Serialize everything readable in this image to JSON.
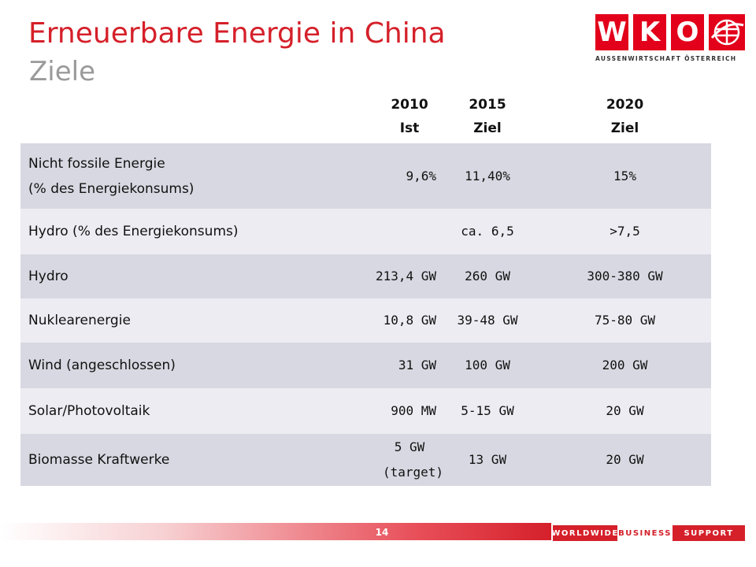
{
  "header": {
    "title": "Erneuerbare Energie in China",
    "subtitle": "Ziele"
  },
  "logo": {
    "letters": [
      "W",
      "K",
      "O"
    ],
    "tagline": "AUSSENWIRTSCHAFT ÖSTERREICH",
    "brand_color": "#e2001a",
    "icon": "globe-icon"
  },
  "table": {
    "columns": [
      {
        "year": "2010",
        "label": "Ist"
      },
      {
        "year": "2015",
        "label": "Ziel"
      },
      {
        "year": "2020",
        "label": "Ziel"
      }
    ],
    "rows": [
      {
        "label_line1": "Nicht fossile Energie",
        "label_line2": "(% des  Energiekonsums)",
        "v2010": "9,6%",
        "v2015": "11,40%",
        "v2020": "15%"
      },
      {
        "label": "Hydro (% des Energiekonsums)",
        "v2010": "",
        "v2015": "ca. 6,5",
        "v2020": ">7,5"
      },
      {
        "label": "Hydro",
        "v2010": "213,4 GW",
        "v2015": "260 GW",
        "v2020": "300-380 GW"
      },
      {
        "label": "Nuklearenergie",
        "v2010": "10,8 GW",
        "v2015": "39-48 GW",
        "v2020": "75-80 GW"
      },
      {
        "label": "Wind (angeschlossen)",
        "v2010": "31 GW",
        "v2015": "100 GW",
        "v2020": "200 GW"
      },
      {
        "label": "Solar/Photovoltaik",
        "v2010": "900 MW",
        "v2015": "5-15 GW",
        "v2020": "20 GW"
      },
      {
        "label": "Biomasse Kraftwerke",
        "v2010_line1": "5 GW",
        "v2010_line2": "(target)",
        "v2015": "13 GW",
        "v2020": "20 GW"
      }
    ],
    "row_colors": {
      "shade": "#d8d8e2",
      "light": "#ececf2"
    }
  },
  "footer": {
    "page_number": "14",
    "tagline": [
      "WORLDWIDE",
      "BUSINESS",
      "SUPPORT"
    ],
    "accent": "#d5202a"
  }
}
